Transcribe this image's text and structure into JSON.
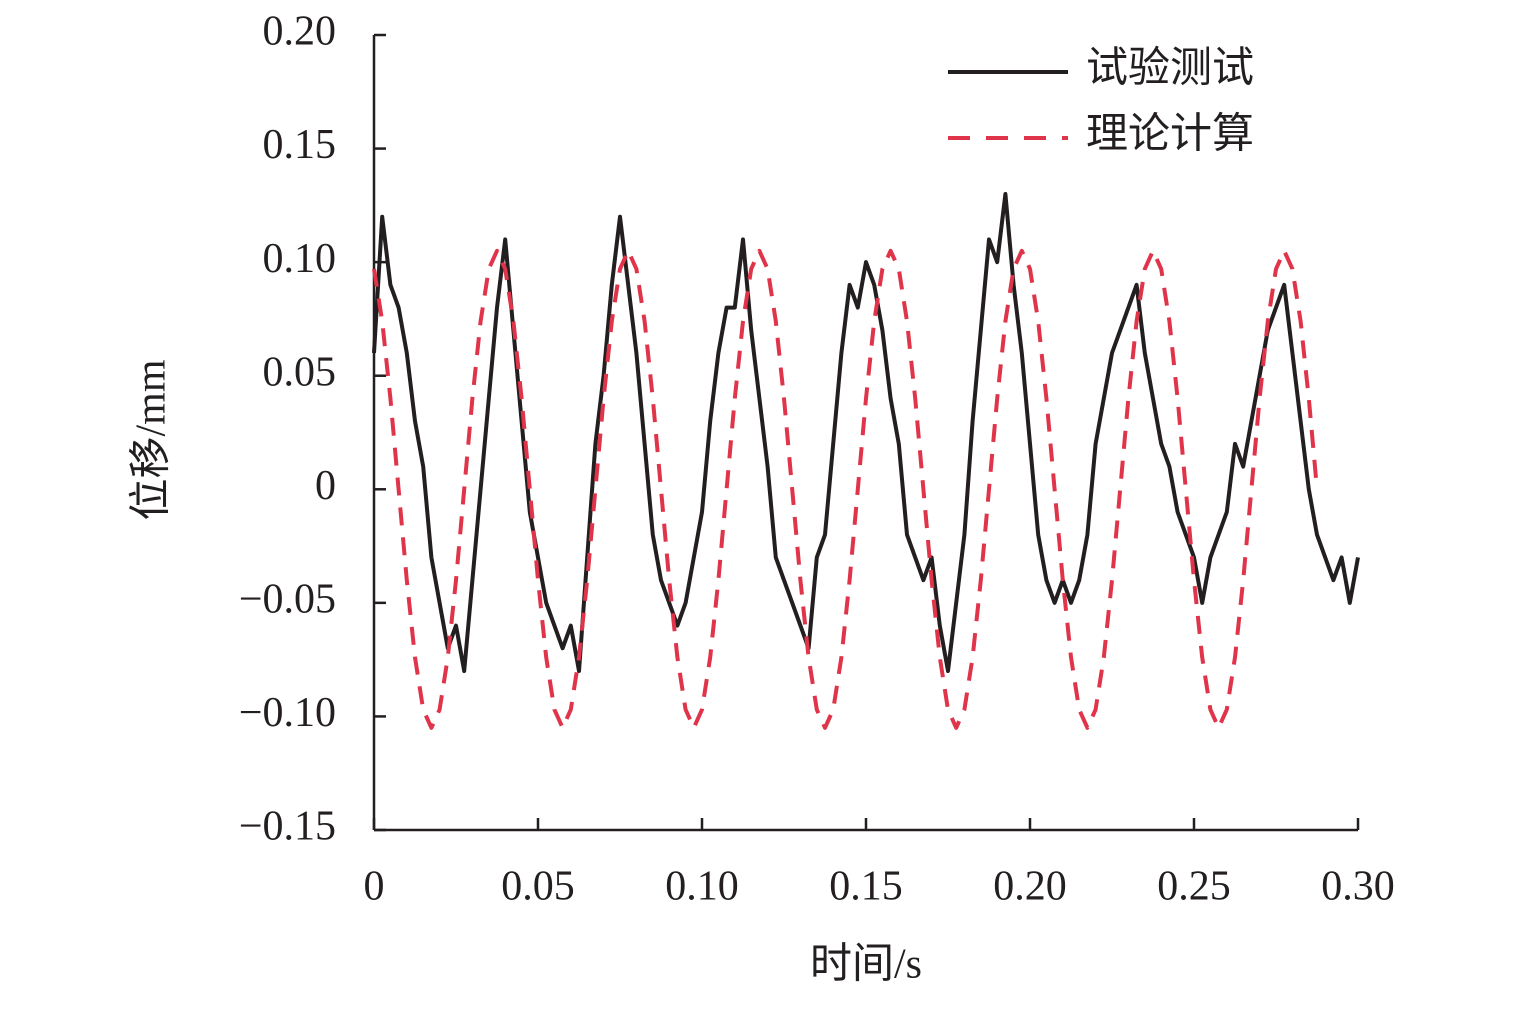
{
  "chart_data": {
    "type": "line",
    "xlabel": "时间/s",
    "ylabel": "位移/mm",
    "x": [
      0,
      0.0025,
      0.005,
      0.0075,
      0.01,
      0.0125,
      0.015,
      0.0175,
      0.02,
      0.0225,
      0.025,
      0.0275,
      0.03,
      0.0325,
      0.035,
      0.0375,
      0.04,
      0.0425,
      0.045,
      0.0475,
      0.05,
      0.0525,
      0.055,
      0.0575,
      0.06,
      0.0625,
      0.065,
      0.0675,
      0.07,
      0.0725,
      0.075,
      0.0775,
      0.08,
      0.0825,
      0.085,
      0.0875,
      0.09,
      0.0925,
      0.095,
      0.0975,
      0.1,
      0.1025,
      0.105,
      0.1075,
      0.11,
      0.1125,
      0.115,
      0.1175,
      0.12,
      0.1225,
      0.125,
      0.1275,
      0.13,
      0.1325,
      0.135,
      0.1375,
      0.14,
      0.1425,
      0.145,
      0.1475,
      0.15,
      0.1525,
      0.155,
      0.1575,
      0.16,
      0.1625,
      0.165,
      0.1675,
      0.17,
      0.1725,
      0.175,
      0.1775,
      0.18,
      0.1825,
      0.185,
      0.1875,
      0.19,
      0.1925,
      0.195,
      0.1975,
      0.2,
      0.2025,
      0.205,
      0.2075,
      0.21,
      0.2125,
      0.215,
      0.2175,
      0.22,
      0.2225,
      0.225,
      0.2275,
      0.23,
      0.2325,
      0.235,
      0.2375,
      0.24,
      0.2425,
      0.245,
      0.2475,
      0.25,
      0.2525,
      0.255,
      0.2575,
      0.26,
      0.2625,
      0.265,
      0.2675,
      0.27,
      0.2725,
      0.275,
      0.2775,
      0.28,
      0.2825,
      0.285,
      0.2875,
      0.29,
      0.2925,
      0.295,
      0.2975,
      0.3
    ],
    "series": [
      {
        "name": "试验测试",
        "color": "#231f20",
        "line_style": "solid",
        "values": [
          0.06,
          0.12,
          0.09,
          0.08,
          0.06,
          0.03,
          0.01,
          -0.03,
          -0.05,
          -0.07,
          -0.06,
          -0.08,
          -0.04,
          0,
          0.04,
          0.08,
          0.11,
          0.07,
          0.03,
          -0.01,
          -0.03,
          -0.05,
          -0.06,
          -0.07,
          -0.06,
          -0.08,
          -0.03,
          0.02,
          0.05,
          0.09,
          0.12,
          0.09,
          0.06,
          0.02,
          -0.02,
          -0.04,
          -0.05,
          -0.06,
          -0.05,
          -0.03,
          -0.01,
          0.03,
          0.06,
          0.08,
          0.08,
          0.11,
          0.07,
          0.04,
          0.01,
          -0.03,
          -0.04,
          -0.05,
          -0.06,
          -0.07,
          -0.03,
          -0.02,
          0.02,
          0.06,
          0.09,
          0.08,
          0.1,
          0.09,
          0.07,
          0.04,
          0.02,
          -0.02,
          -0.03,
          -0.04,
          -0.03,
          -0.06,
          -0.08,
          -0.05,
          -0.02,
          0.03,
          0.07,
          0.11,
          0.1,
          0.13,
          0.09,
          0.06,
          0.02,
          -0.02,
          -0.04,
          -0.05,
          -0.04,
          -0.05,
          -0.04,
          -0.02,
          0.02,
          0.04,
          0.06,
          0.07,
          0.08,
          0.09,
          0.06,
          0.04,
          0.02,
          0.01,
          -0.01,
          -0.02,
          -0.03,
          -0.05,
          -0.03,
          -0.02,
          -0.01,
          0.02,
          0.01,
          0.03,
          0.05,
          0.07,
          0.08,
          0.09,
          0.06,
          0.03,
          0,
          -0.02,
          -0.03,
          -0.04,
          -0.03,
          -0.05,
          -0.03
        ]
      },
      {
        "name": "理论计算",
        "color": "#e0344a",
        "line_style": "dashed",
        "values": [
          0.097,
          0.074,
          0.04,
          0,
          -0.04,
          -0.074,
          -0.097,
          -0.105,
          -0.097,
          -0.074,
          -0.04,
          0,
          0.04,
          0.074,
          0.097,
          0.105,
          0.097,
          0.074,
          0.04,
          0,
          -0.04,
          -0.074,
          -0.097,
          -0.105,
          -0.097,
          -0.074,
          -0.04,
          0,
          0.04,
          0.074,
          0.097,
          0.105,
          0.097,
          0.074,
          0.04,
          0,
          -0.04,
          -0.074,
          -0.097,
          -0.105,
          -0.097,
          -0.074,
          -0.04,
          0,
          0.04,
          0.074,
          0.097,
          0.105,
          0.097,
          0.074,
          0.04,
          0,
          -0.04,
          -0.074,
          -0.097,
          -0.105,
          -0.097,
          -0.074,
          -0.04,
          0,
          0.04,
          0.074,
          0.097,
          0.105,
          0.097,
          0.074,
          0.04,
          0,
          -0.04,
          -0.074,
          -0.097,
          -0.105,
          -0.097,
          -0.074,
          -0.04,
          0,
          0.04,
          0.074,
          0.097,
          0.105,
          0.097,
          0.074,
          0.04,
          0,
          -0.04,
          -0.074,
          -0.097,
          -0.105,
          -0.097,
          -0.074,
          -0.04,
          0,
          0.04,
          0.074,
          0.097,
          0.105,
          0.097,
          0.074,
          0.04,
          0,
          -0.04,
          -0.074,
          -0.097,
          -0.105,
          -0.097,
          -0.074,
          -0.04,
          0,
          0.04,
          0.074,
          0.097,
          0.105,
          0.097,
          0.074,
          0.04,
          0,
          null,
          null,
          null,
          null,
          null
        ]
      }
    ],
    "xlim": [
      0,
      0.3
    ],
    "xticks": [
      0,
      0.05,
      {
        "value": 0.1,
        "label": "0.10"
      },
      0.15,
      {
        "value": 0.2,
        "label": "0.20"
      },
      0.25,
      {
        "value": 0.3,
        "label": "0.30"
      }
    ],
    "ylim": [
      -0.15,
      0.2
    ],
    "yticks": [
      {
        "value": -0.15,
        "label": "−0.15"
      },
      {
        "value": -0.1,
        "label": "−0.10"
      },
      {
        "value": -0.05,
        "label": "−0.05"
      },
      0,
      0.05,
      {
        "value": 0.1,
        "label": "0.10"
      },
      0.15,
      {
        "value": 0.2,
        "label": "0.20"
      }
    ],
    "legend": "upper right",
    "grid": false
  }
}
